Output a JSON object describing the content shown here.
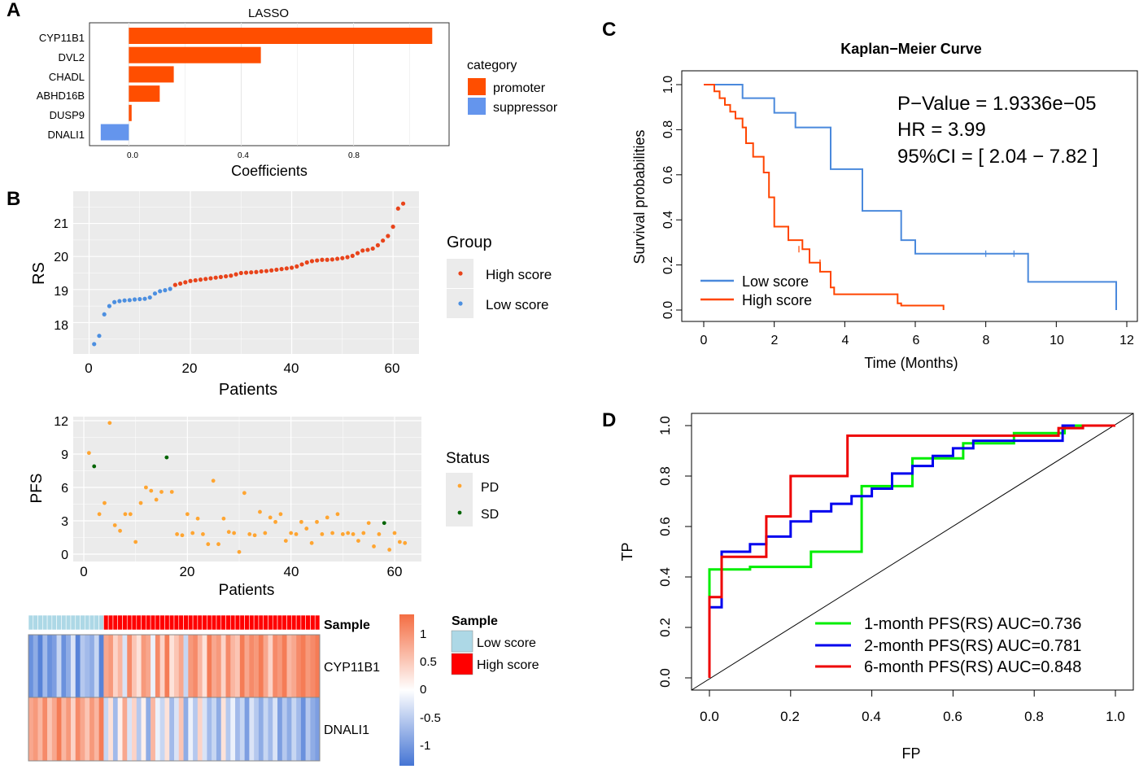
{
  "panels": {
    "A": {
      "letter": "A",
      "title": "LASSO",
      "xlabel": "Coefficients",
      "xticks": [
        "0.0",
        "0.4",
        "0.8"
      ],
      "legend_title": "category",
      "legend": [
        "promoter",
        "suppressor"
      ]
    },
    "B": {
      "letter": "B",
      "rs_ylabel": "RS",
      "rs_xlabel": "Patients",
      "rs_yticks": [
        "18",
        "19",
        "20",
        "21"
      ],
      "x_ticks": [
        "0",
        "20",
        "40",
        "60"
      ],
      "group_title": "Group",
      "group_legend": [
        "High score",
        "Low score"
      ],
      "pfs_ylabel": "PFS",
      "pfs_xlabel": "Patients",
      "pfs_yticks": [
        "0",
        "3",
        "6",
        "9",
        "12"
      ],
      "status_title": "Status",
      "status_legend": [
        "PD",
        "SD"
      ],
      "heat_rows": [
        "Sample",
        "CYP11B1",
        "DNALI1"
      ],
      "colorbar_ticks": [
        "1",
        "0.5",
        "0",
        "-0.5",
        "-1"
      ],
      "sample_title": "Sample",
      "sample_legend": [
        "Low score",
        "High score"
      ]
    },
    "C": {
      "letter": "C",
      "title": "Kaplan−Meier Curve",
      "ylabel": "Survival probabilities",
      "xlabel": "Time (Months)",
      "yticks": [
        "0.0",
        "0.2",
        "0.4",
        "0.6",
        "0.8",
        "1.0"
      ],
      "xticks": [
        "0",
        "2",
        "4",
        "6",
        "8",
        "10",
        "12"
      ],
      "stats": [
        "P−Value = 1.9336e−05",
        "HR = 3.99",
        "95%CI = [ 2.04 − 7.82 ]"
      ],
      "legend": [
        "Low score",
        "High score"
      ]
    },
    "D": {
      "letter": "D",
      "ylabel": "TP",
      "xlabel": "FP",
      "ticks": [
        "0.0",
        "0.2",
        "0.4",
        "0.6",
        "0.8",
        "1.0"
      ],
      "legend": [
        "1-month PFS(RS) AUC=0.736",
        "2-month PFS(RS) AUC=0.781",
        "6-month PFS(RS) AUC=0.848"
      ]
    }
  },
  "colors": {
    "promoter": "#ff4e00",
    "suppressor": "#6495ed",
    "high": "#e8431a",
    "low": "#4c8fe0",
    "pd": "#ffa531",
    "sd": "#006400",
    "km_low": "#4a89dc",
    "km_high": "#ff4500",
    "roc1": "#00ee00",
    "roc2": "#0000ee",
    "roc6": "#ee0000",
    "panel_bg": "#ebebeb",
    "sample_low": "#add8e6",
    "sample_high": "#ff0000"
  },
  "chart_data": [
    {
      "id": "A",
      "type": "bar",
      "orientation": "horizontal",
      "title": "LASSO",
      "xlabel": "Coefficients",
      "categories": [
        "CYP11B1",
        "DVL2",
        "CHADL",
        "ABHD16B",
        "DUSP9",
        "DNALI1"
      ],
      "values": [
        1.08,
        0.47,
        0.16,
        0.11,
        0.01,
        -0.1
      ],
      "category_of_value": [
        "promoter",
        "promoter",
        "promoter",
        "promoter",
        "promoter",
        "suppressor"
      ],
      "xlim": [
        -0.14,
        1.14
      ]
    },
    {
      "id": "B_rs",
      "type": "scatter",
      "xlabel": "Patients",
      "ylabel": "RS",
      "xlim": [
        0,
        64
      ],
      "ylim": [
        17.1,
        21.9
      ],
      "low_count": 16,
      "values": [
        17.35,
        17.6,
        18.25,
        18.5,
        18.62,
        18.65,
        18.67,
        18.68,
        18.7,
        18.71,
        18.72,
        18.76,
        18.88,
        18.95,
        18.98,
        19.02,
        19.14,
        19.18,
        19.22,
        19.26,
        19.28,
        19.3,
        19.32,
        19.34,
        19.36,
        19.38,
        19.4,
        19.42,
        19.46,
        19.5,
        19.51,
        19.52,
        19.53,
        19.55,
        19.56,
        19.58,
        19.6,
        19.62,
        19.64,
        19.66,
        19.7,
        19.76,
        19.82,
        19.86,
        19.88,
        19.9,
        19.9,
        19.91,
        19.93,
        19.95,
        19.98,
        20.02,
        20.1,
        20.18,
        20.2,
        20.24,
        20.34,
        20.48,
        20.62,
        20.9,
        21.45,
        21.6
      ]
    },
    {
      "id": "B_pfs",
      "type": "scatter",
      "xlabel": "Patients",
      "ylabel": "PFS",
      "xlim": [
        -2,
        65
      ],
      "ylim": [
        -0.4,
        12.4
      ],
      "values": [
        9.1,
        7.9,
        3.6,
        4.6,
        11.8,
        2.6,
        2.1,
        3.6,
        3.6,
        1.1,
        4.6,
        6.0,
        5.7,
        4.9,
        5.6,
        8.7,
        5.6,
        1.8,
        1.7,
        3.6,
        1.9,
        3.2,
        1.8,
        0.9,
        6.6,
        0.9,
        3.2,
        2.0,
        1.9,
        0.2,
        5.5,
        1.8,
        1.7,
        3.8,
        1.9,
        3.3,
        2.9,
        3.6,
        1.2,
        1.9,
        1.8,
        2.9,
        2.3,
        1.0,
        2.9,
        1.8,
        3.3,
        1.9,
        3.6,
        1.8,
        1.9,
        1.8,
        1.2,
        1.9,
        2.8,
        0.7,
        1.8,
        2.8,
        0.4,
        1.9,
        1.1,
        1.0
      ],
      "sd_indices": [
        2,
        16,
        58
      ]
    },
    {
      "id": "B_heatmap",
      "type": "heatmap",
      "rows": [
        "CYP11B1",
        "DNALI1"
      ],
      "low_count": 16,
      "cyp11b1": [
        -0.8,
        -0.6,
        -0.9,
        -0.5,
        -0.8,
        -0.7,
        -0.3,
        -0.8,
        -0.6,
        -0.2,
        -0.9,
        -0.4,
        -0.5,
        -0.6,
        -0.3,
        -0.9,
        0.6,
        0.7,
        0.3,
        0.5,
        -0.2,
        0.8,
        0.4,
        0.2,
        0.7,
        0.6,
        -0.1,
        0.8,
        0.3,
        0.9,
        0.2,
        0.4,
        0.6,
        -0.3,
        0.7,
        0.8,
        0.5,
        0.2,
        0.9,
        0.6,
        0.7,
        0.3,
        0.8,
        0.5,
        0.4,
        0.9,
        0.6,
        0.8,
        0.7,
        0.9,
        0.6,
        0.3,
        0.8,
        0.7,
        0.9,
        0.5,
        0.6,
        0.8,
        0.9,
        0.7,
        0.8,
        0.9
      ],
      "dnali1": [
        0.6,
        0.7,
        0.5,
        0.8,
        0.4,
        0.6,
        0.9,
        0.5,
        0.7,
        0.3,
        0.8,
        0.6,
        0.4,
        0.7,
        0.5,
        0.9,
        -0.3,
        0.2,
        -0.5,
        0.1,
        0.6,
        -0.2,
        0.3,
        -0.4,
        0.1,
        -0.6,
        0.5,
        -0.1,
        -0.3,
        0.2,
        -0.5,
        -0.2,
        0.4,
        -0.6,
        -0.1,
        -0.4,
        0.3,
        -0.2,
        -0.5,
        -0.3,
        -0.6,
        0.2,
        -0.4,
        -0.1,
        -0.5,
        -0.3,
        -0.7,
        -0.2,
        -0.4,
        -0.6,
        -0.3,
        -0.5,
        -0.2,
        -0.7,
        -0.4,
        -0.6,
        -0.3,
        -0.5,
        -0.8,
        -0.4,
        -0.6,
        -0.7
      ]
    },
    {
      "id": "C",
      "type": "line",
      "title": "Kaplan−Meier Curve",
      "xlabel": "Time (Months)",
      "ylabel": "Survival probabilities",
      "xlim": [
        -0.6,
        12.6
      ],
      "ylim": [
        -0.04,
        1.04
      ],
      "series": [
        {
          "name": "Low score",
          "x": [
            0,
            1.1,
            1.1,
            2.0,
            2.0,
            2.6,
            2.6,
            3.6,
            3.6,
            4.5,
            4.5,
            5.6,
            5.6,
            6.0,
            6.0,
            9.2,
            9.2,
            11.7,
            11.7
          ],
          "y": [
            1.0,
            1.0,
            0.94,
            0.94,
            0.875,
            0.875,
            0.81,
            0.81,
            0.625,
            0.625,
            0.44,
            0.44,
            0.31,
            0.31,
            0.25,
            0.25,
            0.125,
            0.125,
            0.0
          ],
          "censor_x": [
            8.0,
            8.8
          ],
          "censor_y": [
            0.25,
            0.25
          ]
        },
        {
          "name": "High score",
          "x": [
            0,
            0.3,
            0.3,
            0.45,
            0.45,
            0.6,
            0.6,
            0.75,
            0.75,
            0.9,
            0.9,
            1.1,
            1.1,
            1.2,
            1.2,
            1.4,
            1.4,
            1.7,
            1.7,
            1.85,
            1.85,
            2.0,
            2.0,
            2.4,
            2.4,
            2.8,
            2.8,
            3.0,
            3.0,
            3.3,
            3.3,
            3.6,
            3.6,
            3.7,
            3.7,
            5.5,
            5.5,
            5.6,
            5.6,
            6.8,
            6.8
          ],
          "y": [
            1.0,
            1.0,
            0.97,
            0.97,
            0.94,
            0.94,
            0.91,
            0.91,
            0.88,
            0.88,
            0.85,
            0.85,
            0.81,
            0.81,
            0.74,
            0.74,
            0.68,
            0.68,
            0.61,
            0.61,
            0.5,
            0.5,
            0.37,
            0.37,
            0.31,
            0.31,
            0.27,
            0.27,
            0.21,
            0.21,
            0.17,
            0.17,
            0.1,
            0.1,
            0.07,
            0.07,
            0.03,
            0.03,
            0.02,
            0.02,
            0.0
          ],
          "censor_x": [
            2.7,
            3.3
          ],
          "censor_y": [
            0.27,
            0.21
          ]
        }
      ]
    },
    {
      "id": "D",
      "type": "line",
      "xlabel": "FP",
      "ylabel": "TP",
      "xlim": [
        -0.04,
        1.04
      ],
      "ylim": [
        -0.04,
        1.04
      ],
      "series": [
        {
          "name": "1-month PFS(RS) AUC=0.736",
          "x": [
            0,
            0,
            0.1,
            0.1,
            0.25,
            0.25,
            0.375,
            0.375,
            0.5,
            0.5,
            0.625,
            0.625,
            0.75,
            0.75,
            0.875,
            0.875,
            1.0
          ],
          "y": [
            0,
            0.43,
            0.43,
            0.44,
            0.44,
            0.5,
            0.5,
            0.76,
            0.76,
            0.87,
            0.87,
            0.93,
            0.93,
            0.97,
            0.97,
            1.0,
            1.0
          ]
        },
        {
          "name": "2-month PFS(RS) AUC=0.781",
          "x": [
            0,
            0,
            0.03,
            0.03,
            0.1,
            0.1,
            0.14,
            0.14,
            0.2,
            0.2,
            0.25,
            0.25,
            0.3,
            0.3,
            0.35,
            0.35,
            0.4,
            0.4,
            0.45,
            0.45,
            0.5,
            0.5,
            0.55,
            0.55,
            0.6,
            0.6,
            0.65,
            0.65,
            0.87,
            0.87,
            0.9
          ],
          "y": [
            0,
            0.28,
            0.28,
            0.5,
            0.5,
            0.53,
            0.53,
            0.56,
            0.56,
            0.62,
            0.62,
            0.66,
            0.66,
            0.69,
            0.69,
            0.72,
            0.72,
            0.75,
            0.75,
            0.81,
            0.81,
            0.84,
            0.84,
            0.88,
            0.88,
            0.91,
            0.91,
            0.94,
            0.94,
            1.0,
            1.0
          ]
        },
        {
          "name": "6-month PFS(RS) AUC=0.848",
          "x": [
            0,
            0,
            0.03,
            0.03,
            0.14,
            0.14,
            0.2,
            0.2,
            0.34,
            0.34,
            0.86,
            0.86,
            0.92,
            0.92,
            1.0
          ],
          "y": [
            0,
            0.32,
            0.32,
            0.48,
            0.48,
            0.64,
            0.64,
            0.8,
            0.8,
            0.96,
            0.96,
            0.99,
            0.99,
            1.0,
            1.0
          ]
        }
      ]
    }
  ]
}
